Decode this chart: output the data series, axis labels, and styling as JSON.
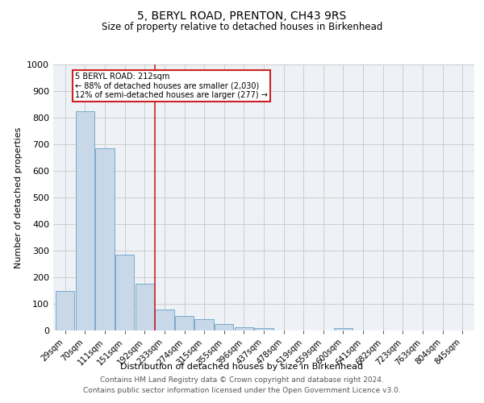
{
  "title": "5, BERYL ROAD, PRENTON, CH43 9RS",
  "subtitle": "Size of property relative to detached houses in Birkenhead",
  "xlabel": "Distribution of detached houses by size in Birkenhead",
  "ylabel": "Number of detached properties",
  "categories": [
    "29sqm",
    "70sqm",
    "111sqm",
    "151sqm",
    "192sqm",
    "233sqm",
    "274sqm",
    "315sqm",
    "355sqm",
    "396sqm",
    "437sqm",
    "478sqm",
    "519sqm",
    "559sqm",
    "600sqm",
    "641sqm",
    "682sqm",
    "723sqm",
    "763sqm",
    "804sqm",
    "845sqm"
  ],
  "values": [
    150,
    825,
    685,
    285,
    175,
    80,
    55,
    43,
    23,
    13,
    10,
    0,
    0,
    0,
    10,
    0,
    0,
    0,
    0,
    0,
    0
  ],
  "bar_color": "#c8d8e8",
  "bar_edge_color": "#7aaacc",
  "grid_color": "#cccccc",
  "bg_color": "#eef2f7",
  "annotation_line1": "5 BERYL ROAD: 212sqm",
  "annotation_line2": "← 88% of detached houses are smaller (2,030)",
  "annotation_line3": "12% of semi-detached houses are larger (277) →",
  "vline_x": 4.5,
  "vline_color": "#cc2222",
  "box_color": "#cc2222",
  "footnote1": "Contains HM Land Registry data © Crown copyright and database right 2024.",
  "footnote2": "Contains public sector information licensed under the Open Government Licence v3.0.",
  "ylim": [
    0,
    1000
  ],
  "yticks": [
    0,
    100,
    200,
    300,
    400,
    500,
    600,
    700,
    800,
    900,
    1000
  ]
}
